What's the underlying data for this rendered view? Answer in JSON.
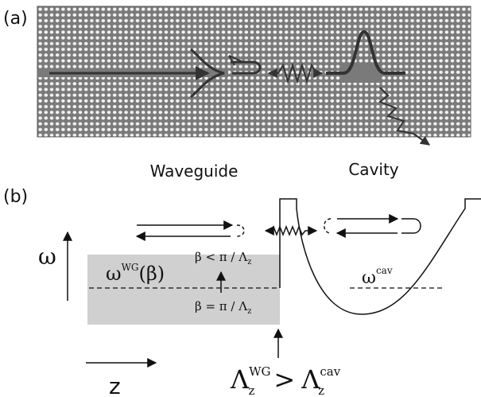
{
  "panel_a": {
    "label": "(a)",
    "waveguide": "Waveguide",
    "cavity": "Cavity"
  },
  "panel_b": {
    "label": "(b)",
    "omega": "ω",
    "omega_wg": {
      "symbol": "ω",
      "sup": "WG",
      "arg": "(β)"
    },
    "beta_lt": {
      "text": "β < π / Λ",
      "sub": "z"
    },
    "beta_eq": {
      "text": "β = π / Λ",
      "sub": "z"
    },
    "omega_cav": {
      "symbol": "ω",
      "sup": "cav"
    },
    "z": "z",
    "lambda": {
      "left": "Λ",
      "left_sup": "WG",
      "left_sub": "z",
      "op": ">",
      "right": "Λ",
      "right_sup": "cav",
      "right_sub": "z"
    }
  }
}
